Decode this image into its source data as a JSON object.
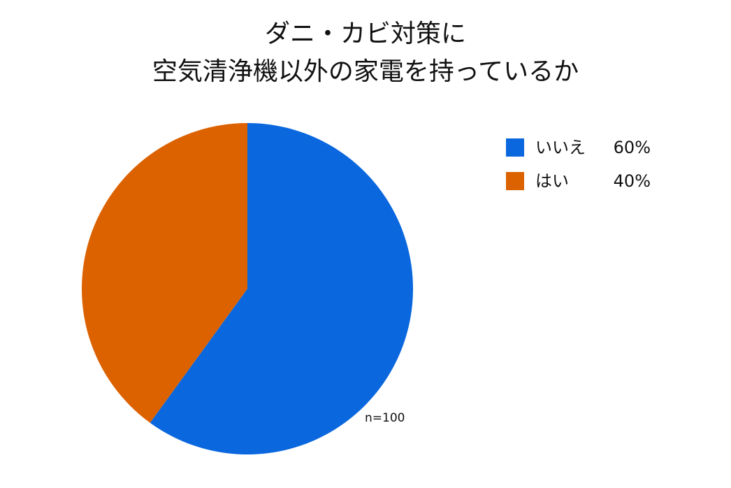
{
  "chart_data": {
    "type": "pie",
    "title": [
      "ダニ・カビ対策に",
      "空気清浄機以外の家電を持っているか"
    ],
    "categories": [
      "いいえ",
      "はい"
    ],
    "values": [
      60,
      40
    ],
    "value_labels": [
      "60%",
      "40%"
    ],
    "colors": [
      "#0a67de",
      "#dc6200"
    ],
    "annotation": "n=100",
    "legend": "right"
  }
}
